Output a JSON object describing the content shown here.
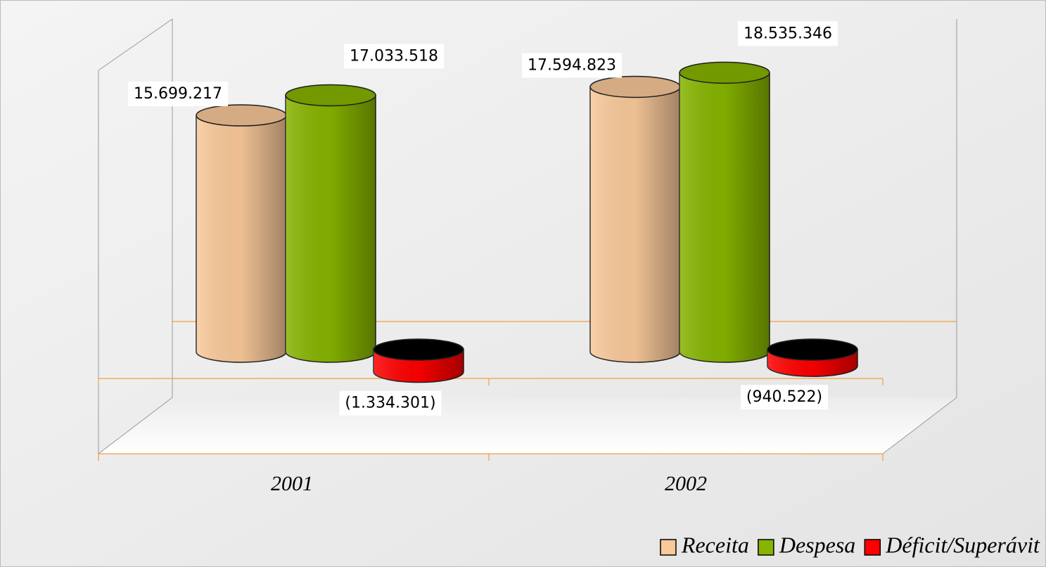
{
  "chart_data": {
    "type": "bar",
    "categories": [
      "2001",
      "2002"
    ],
    "series": [
      {
        "name": "Receita",
        "color": "#f9c99a",
        "values": [
          15699217,
          17594823
        ],
        "value_labels": [
          "15.699.217",
          "17.594.823"
        ]
      },
      {
        "name": "Despesa",
        "color": "#86b400",
        "values": [
          17033518,
          18535346
        ],
        "value_labels": [
          "17.033.518",
          "18.535.346"
        ]
      },
      {
        "name": "Déficit/Superávit",
        "color": "#ff0000",
        "values": [
          -1334301,
          -940522
        ],
        "value_labels": [
          "(1.334.301)",
          "(940.522)"
        ]
      }
    ],
    "grid": true,
    "legend": "bottom-right"
  }
}
